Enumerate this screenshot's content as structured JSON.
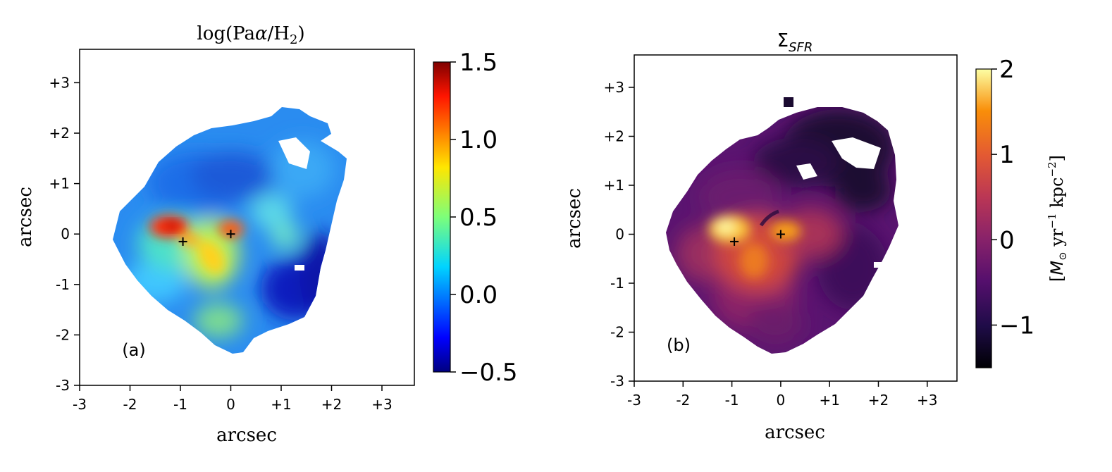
{
  "chart_data": [
    {
      "type": "heatmap",
      "panel_label": "(a)",
      "title_main": "log(Pa",
      "title_greek": "α",
      "title_slash": "/H",
      "title_sub": "2",
      "title_close": ")",
      "xlabel": "arcsec",
      "ylabel": "arcsec",
      "xticks": [
        "-3",
        "-2",
        "-1",
        "0",
        "+1",
        "+2",
        "+3"
      ],
      "yticks": [
        "-3",
        "-2",
        "-1",
        "0",
        "+1",
        "+2",
        "+3"
      ],
      "xlim": [
        -3,
        3.6
      ],
      "ylim": [
        -3,
        3.7
      ],
      "colormap": "jet",
      "colorbar": {
        "range": [
          -0.5,
          1.5
        ],
        "ticks": [
          1.5,
          1.0,
          0.5,
          0.0,
          -0.5
        ],
        "tick_labels": [
          "1.5",
          "1.0",
          "0.5",
          "0.0",
          "−0.5"
        ],
        "label": ""
      },
      "markers": [
        {
          "name": "plus-marker-1",
          "x": -0.95,
          "y": -0.15
        },
        {
          "name": "plus-marker-2",
          "x": 0.0,
          "y": 0.0
        }
      ],
      "emission_peaks": [
        {
          "x": -1.15,
          "y": 0.15,
          "value": 1.3
        },
        {
          "x": 0.05,
          "y": 0.08,
          "value": 1.1
        },
        {
          "x": -0.45,
          "y": -0.45,
          "value": 0.85
        },
        {
          "x": -0.2,
          "y": -1.8,
          "value": 0.45
        }
      ]
    },
    {
      "type": "heatmap",
      "panel_label": "(b)",
      "title_main": "Σ",
      "title_sub": "SFR",
      "xlabel": "arcsec",
      "ylabel": "arcsec",
      "xticks": [
        "-3",
        "-2",
        "-1",
        "0",
        "+1",
        "+2",
        "+3"
      ],
      "yticks": [
        "-3",
        "-2",
        "-1",
        "0",
        "+1",
        "+2",
        "+3"
      ],
      "xlim": [
        -3,
        3.6
      ],
      "ylim": [
        -3,
        3.7
      ],
      "colormap": "inferno",
      "colorbar": {
        "range": [
          -1.5,
          2.0
        ],
        "ticks": [
          2,
          1,
          0,
          -1
        ],
        "tick_labels": [
          "2",
          "1",
          "0",
          "−1"
        ],
        "label_open": "[",
        "label_m": "M",
        "label_sun": "⊙",
        "label_yr": " yr",
        "label_exp1": "−1",
        "label_kpc": " kpc",
        "label_exp2": "−2",
        "label_close": "]"
      },
      "markers": [
        {
          "name": "plus-marker-1",
          "x": -0.95,
          "y": -0.15
        },
        {
          "name": "plus-marker-2",
          "x": 0.0,
          "y": 0.0
        }
      ],
      "emission_peaks": [
        {
          "x": -1.05,
          "y": 0.1,
          "value": 1.7
        },
        {
          "x": 0.2,
          "y": 0.05,
          "value": 1.4
        },
        {
          "x": -0.5,
          "y": -0.5,
          "value": 1.0
        }
      ]
    }
  ]
}
